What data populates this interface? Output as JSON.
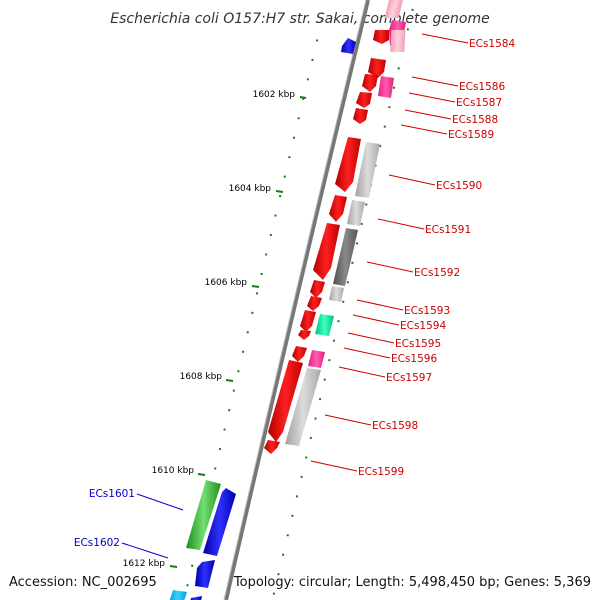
{
  "title": "Escherichia coli O157:H7 str. Sakai, complete genome",
  "footer": {
    "accession": "Accession: NC_002695",
    "summary": "Topology: circular; Length: 5,498,450 bp; Genes: 5,369"
  },
  "colors": {
    "backbone": "#888888",
    "tick": "#1a7a1a",
    "label_right": "#cc0000",
    "label_left": "#0000cc"
  },
  "kbp_labels": [
    "1602 kbp",
    "1604 kbp",
    "1606 kbp",
    "1608 kbp",
    "1610 kbp",
    "1612 kbp"
  ],
  "gene_labels_right": [
    "ECs1584",
    "ECs1586",
    "ECs1587",
    "ECs1588",
    "ECs1589",
    "ECs1590",
    "ECs1591",
    "ECs1592",
    "ECs1593",
    "ECs1594",
    "ECs1595",
    "ECs1596",
    "ECs1597",
    "ECs1598",
    "ECs1599"
  ],
  "gene_labels_left": [
    "ECs1601",
    "ECs1602"
  ]
}
